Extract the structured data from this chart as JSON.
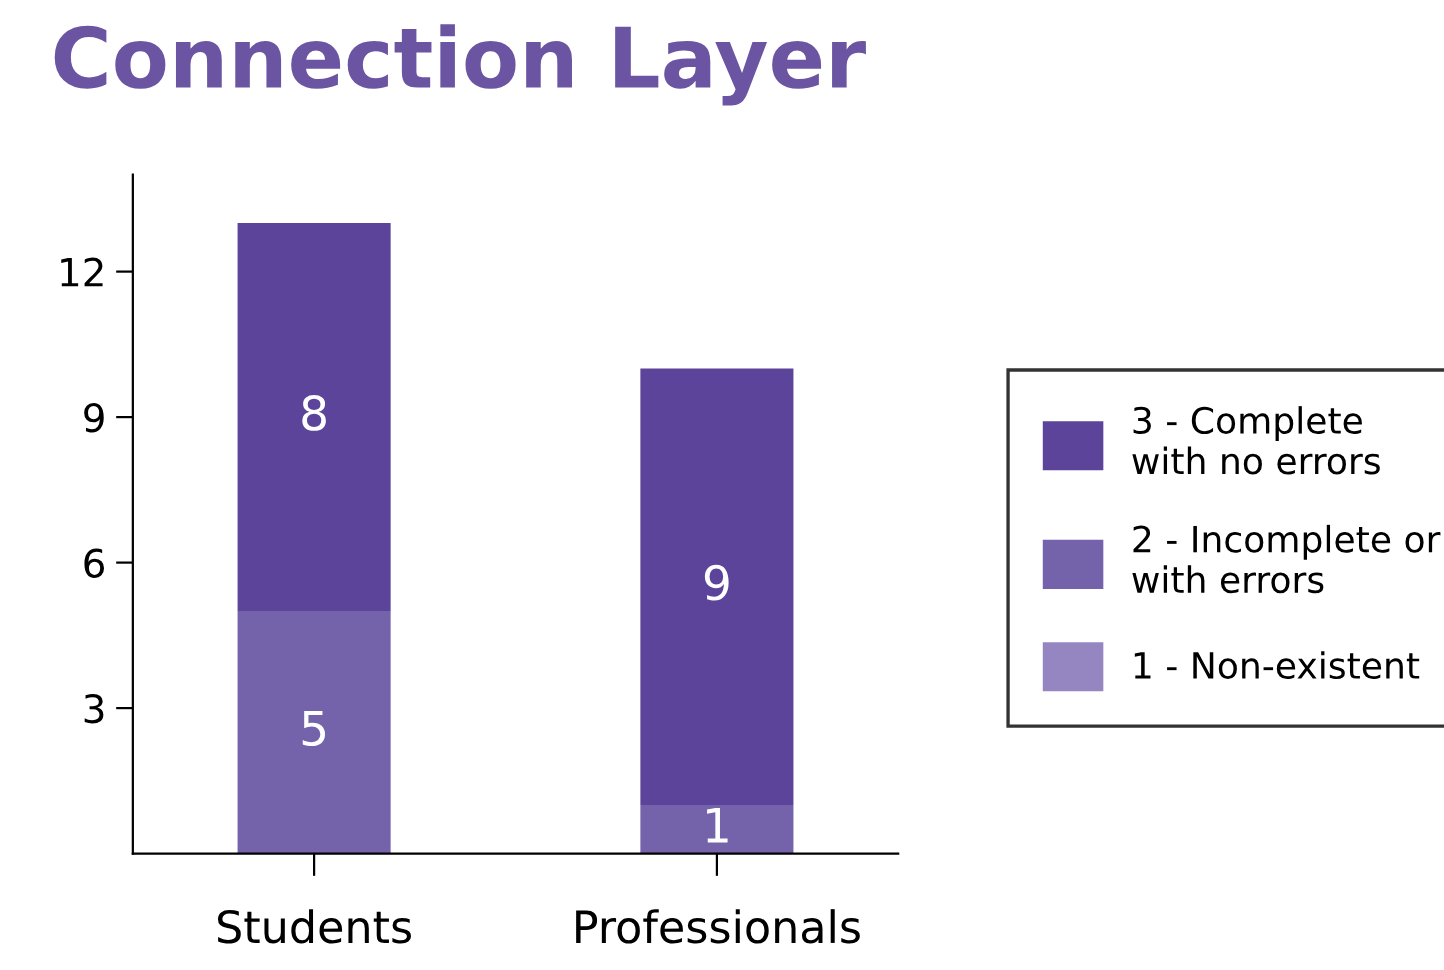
{
  "chart_data": {
    "type": "bar",
    "title": "Connection Layer",
    "stacked": true,
    "categories": [
      "Students",
      "Professionals"
    ],
    "series": [
      {
        "name": "1 - Non-existent",
        "color": "#9585c1",
        "values": [
          0,
          0
        ],
        "value_labels": [
          null,
          null
        ]
      },
      {
        "name": "2 - Incomplete or with errors",
        "color": "#7462ab",
        "values": [
          5,
          1
        ],
        "value_labels": [
          "5",
          "1"
        ]
      },
      {
        "name": "3 - Complete with no errors",
        "color": "#5b4499",
        "values": [
          8,
          9
        ],
        "value_labels": [
          "8",
          "9"
        ]
      }
    ],
    "ylim": [
      0,
      14
    ],
    "yticks": [
      3,
      6,
      9,
      12
    ],
    "grid": false,
    "legend": "right"
  }
}
